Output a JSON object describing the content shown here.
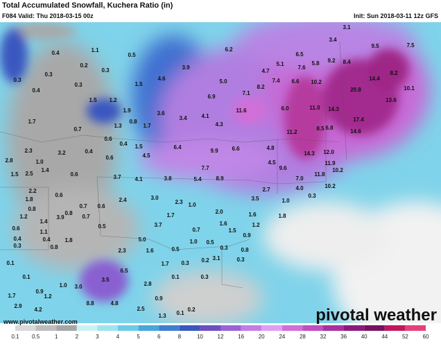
{
  "header": {
    "title": "Total Accumulated Snowfall, Kuchera Ratio (in)",
    "valid": "F084 Valid: Thu 2018-03-15 00z",
    "init": "Init: Sun 2018-03-11 12z GFS"
  },
  "map": {
    "labels": [
      "0.4",
      "1.1",
      "0.5",
      "0.2",
      "0.3",
      "0.3",
      "3.9",
      "4.6",
      "6.2",
      "6.5",
      "5.1",
      "4.7",
      "7.6",
      "5.8",
      "9.2",
      "8.4",
      "9.5",
      "7.5",
      "3.1",
      "3.4",
      "14.4",
      "8.2",
      "0.3",
      "0.3",
      "1.5",
      "5.0",
      "8.2",
      "7.4",
      "6.6",
      "10.2",
      "20.8",
      "10.1",
      "0.4",
      "1.5",
      "1.2",
      "6.9",
      "7.1",
      "13.6",
      "1.9",
      "3.6",
      "3.4",
      "4.1",
      "11.6",
      "6.0",
      "11.0",
      "14.3",
      "0.7",
      "0.8",
      "1.7",
      "4.3",
      "1.7",
      "1.3",
      "17.4",
      "6.8",
      "8.5",
      "11.2",
      "0.6",
      "0.4",
      "3.2",
      "2.3",
      "0.4",
      "0.6",
      "1.5",
      "6.4",
      "9.9",
      "6.6",
      "4.8",
      "14.3",
      "12.0",
      "14.6",
      "2.8",
      "1.0",
      "4.5",
      "7.7",
      "4.5",
      "9.6",
      "11.9",
      "10.2",
      "1.5",
      "2.5",
      "1.4",
      "0.6",
      "3.7",
      "4.1",
      "3.8",
      "5.4",
      "8.9",
      "7.0",
      "11.8",
      "4.0",
      "10.2",
      "2.7",
      "2.2",
      "1.8",
      "0.6",
      "1.0",
      "2.4",
      "3.0",
      "2.3",
      "3.5",
      "1.0",
      "0.3",
      "0.8",
      "0.7",
      "0.6",
      "0.8",
      "0.7",
      "1.2",
      "3.9",
      "1.7",
      "1.8",
      "2.0",
      "1.6",
      "0.6",
      "1.4",
      "0.5",
      "1.6",
      "3.7",
      "0.7",
      "1.5",
      "1.2",
      "1.1",
      "0.9",
      "0.4",
      "0.4",
      "1.8",
      "5.0",
      "1.0",
      "0.5",
      "0.3",
      "0.8",
      "0.5",
      "0.3",
      "0.8",
      "0.1",
      "2.3",
      "1.6",
      "3.1",
      "0.2",
      "0.3",
      "0.3",
      "1.7",
      "0.1",
      "0.3",
      "0.1",
      "3.5",
      "6.5",
      "2.8",
      "1.0",
      "3.0",
      "1.7",
      "0.9",
      "1.2",
      "0.9",
      "4.8",
      "8.8",
      "2.9",
      "4.2",
      "0.1",
      "0.2",
      "2.5",
      "1.3"
    ]
  },
  "colorbar": {
    "labels": [
      "0.1",
      "0.5",
      "1",
      "2",
      "3",
      "4",
      "5",
      "6",
      "8",
      "10",
      "12",
      "16",
      "20",
      "24",
      "28",
      "32",
      "36",
      "40",
      "44",
      "52",
      "60"
    ],
    "colors": [
      "#d9d9d9",
      "#bdbdbd",
      "#a6a6a6",
      "#c9f2f7",
      "#9fe3f0",
      "#6ccbe6",
      "#47a6dc",
      "#3d7fd0",
      "#3a56c0",
      "#6b4fc4",
      "#9a63d6",
      "#c37de6",
      "#e09ef0",
      "#d26ed8",
      "#c04fc0",
      "#a8309f",
      "#8c1a7e",
      "#7a1060",
      "#c2185b",
      "#e6407a"
    ]
  },
  "footer": {
    "website": "www.pivotalweather.com",
    "logo": "pivotal weather"
  }
}
